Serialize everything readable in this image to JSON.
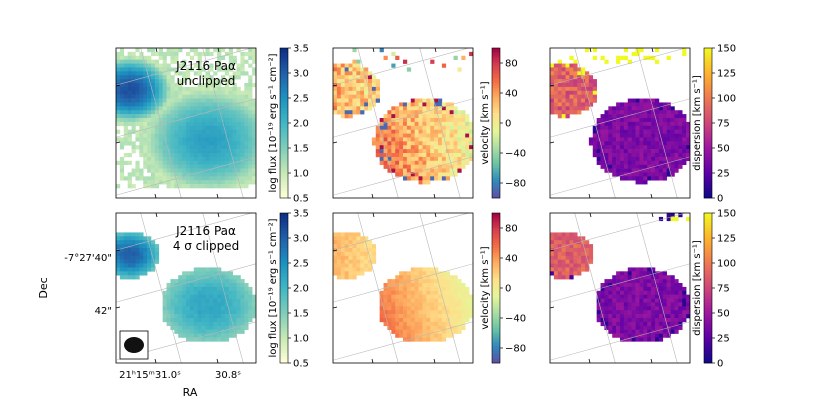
{
  "figure": {
    "ylabel": "Dec",
    "xlabel": "RA",
    "yticks": [
      "-7°27'40\"",
      "42\""
    ],
    "xticks": [
      "21ʰ15ᵐ31.0ˢ",
      "30.8ˢ"
    ]
  },
  "chart_data": [
    {
      "type": "heatmap",
      "quantity": "flux",
      "title_line1": "J2116 Paα",
      "title_line2": "unclipped",
      "colorbar_label": "log flux [10⁻¹⁹ erg s⁻¹ cm⁻²]",
      "clim": [
        0.5,
        3.5
      ],
      "colorbar_ticks": [
        "0.5",
        "1.0",
        "1.5",
        "2.0",
        "2.5",
        "3.0",
        "3.5"
      ],
      "colormap": "YlGnBu",
      "colormap_colors": [
        "#ffffd9",
        "#c7e9b4",
        "#7fcdbb",
        "#41b6c4",
        "#1d91c0",
        "#225ea8",
        "#0c2c84"
      ]
    },
    {
      "type": "heatmap",
      "quantity": "velocity",
      "colorbar_label": "velocity [km s⁻¹]",
      "clim": [
        -100,
        100
      ],
      "colorbar_ticks": [
        "80",
        "40",
        "0",
        "−40",
        "−80"
      ],
      "colormap": "Spectral_r",
      "colormap_colors": [
        "#5e4fa2",
        "#3288bd",
        "#66c2a5",
        "#abdda4",
        "#e6f598",
        "#fee08b",
        "#fdae61",
        "#f46d43",
        "#d53e4f",
        "#9e0142"
      ]
    },
    {
      "type": "heatmap",
      "quantity": "dispersion",
      "colorbar_label": "dispersion [km s⁻¹]",
      "clim": [
        0,
        150
      ],
      "colorbar_ticks": [
        "150",
        "125",
        "100",
        "75",
        "50",
        "25",
        "0"
      ],
      "colormap": "plasma",
      "colormap_colors": [
        "#0d0887",
        "#5c01a6",
        "#9c179e",
        "#cc4778",
        "#ed7953",
        "#fdb42f",
        "#f0f921"
      ]
    },
    {
      "type": "heatmap",
      "quantity": "flux",
      "title_line1": "J2116 Paα",
      "title_line2": "4 σ clipped",
      "colorbar_label": "log flux [10⁻¹⁹ erg s⁻¹ cm⁻²]",
      "clim": [
        0.5,
        3.5
      ],
      "colorbar_ticks": [
        "0.5",
        "1.0",
        "1.5",
        "2.0",
        "2.5",
        "3.0",
        "3.5"
      ],
      "colormap": "YlGnBu",
      "colormap_colors": [
        "#ffffd9",
        "#c7e9b4",
        "#7fcdbb",
        "#41b6c4",
        "#1d91c0",
        "#225ea8",
        "#0c2c84"
      ]
    },
    {
      "type": "heatmap",
      "quantity": "velocity",
      "colorbar_label": "velocity [km s⁻¹]",
      "clim": [
        -100,
        100
      ],
      "colorbar_ticks": [
        "80",
        "40",
        "0",
        "−40",
        "−80"
      ],
      "colormap": "Spectral_r",
      "colormap_colors": [
        "#5e4fa2",
        "#3288bd",
        "#66c2a5",
        "#abdda4",
        "#e6f598",
        "#fee08b",
        "#fdae61",
        "#f46d43",
        "#d53e4f",
        "#9e0142"
      ]
    },
    {
      "type": "heatmap",
      "quantity": "dispersion",
      "colorbar_label": "dispersion [km s⁻¹]",
      "clim": [
        0,
        150
      ],
      "colorbar_ticks": [
        "150",
        "125",
        "100",
        "75",
        "50",
        "25",
        "0"
      ],
      "colormap": "plasma",
      "colormap_colors": [
        "#0d0887",
        "#5c01a6",
        "#9c179e",
        "#cc4778",
        "#ed7953",
        "#fdb42f",
        "#f0f921"
      ]
    }
  ]
}
